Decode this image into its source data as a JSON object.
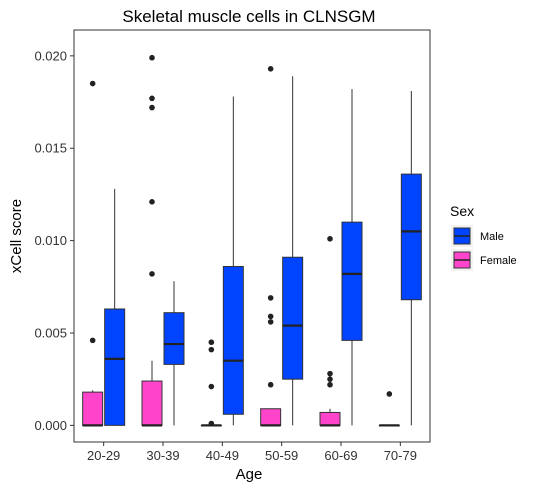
{
  "chart_data": {
    "type": "boxplot",
    "title": "Skeletal muscle cells in CLNSGM",
    "xlabel": "Age",
    "ylabel": "xCell score",
    "ylim": [
      -0.0009,
      0.0214
    ],
    "yticks": [
      "0.000",
      "0.005",
      "0.010",
      "0.015",
      "0.020"
    ],
    "ytick_values": [
      0,
      0.005,
      0.01,
      0.015,
      0.02
    ],
    "categories": [
      "20-29",
      "30-39",
      "40-49",
      "50-59",
      "60-69",
      "70-79"
    ],
    "legend": {
      "title": "Sex",
      "position": "right",
      "entries": [
        {
          "label": "Male",
          "color": "#0044ff"
        },
        {
          "label": "Female",
          "color": "#ff44cc"
        }
      ]
    },
    "grid": false,
    "series": [
      {
        "name": "Female",
        "color": "#ff44cc",
        "boxes": [
          {
            "min": 0,
            "q1": 0,
            "median": 0,
            "q3": 0.0018,
            "max": 0.0019,
            "outliers": [
              0.0185,
              0.0046
            ]
          },
          {
            "min": 0,
            "q1": 0,
            "median": 0,
            "q3": 0.0024,
            "max": 0.0035,
            "outliers": [
              0.0199,
              0.0177,
              0.0172,
              0.0121,
              0.0082
            ]
          },
          {
            "min": 0,
            "q1": 0,
            "median": 0,
            "q3": 0,
            "max": 0,
            "outliers": [
              0.0045,
              0.0041,
              0.0021,
              0.0001
            ]
          },
          {
            "min": 0,
            "q1": 0,
            "median": 0,
            "q3": 0.0009,
            "max": 0.0009,
            "outliers": [
              0.0193,
              0.0069,
              0.0059,
              0.0056,
              0.0022
            ]
          },
          {
            "min": 0,
            "q1": 0,
            "median": 0,
            "q3": 0.0007,
            "max": 0.0009,
            "outliers": [
              0.0101,
              0.0028,
              0.0025,
              0.0022
            ]
          },
          {
            "min": 0,
            "q1": 0,
            "median": 0,
            "q3": 0,
            "max": 0,
            "outliers": [
              0.0017
            ]
          }
        ]
      },
      {
        "name": "Male",
        "color": "#0044ff",
        "boxes": [
          {
            "min": 0,
            "q1": 0,
            "median": 0.0036,
            "q3": 0.0063,
            "max": 0.0128,
            "outliers": []
          },
          {
            "min": 0,
            "q1": 0.0033,
            "median": 0.0044,
            "q3": 0.0061,
            "max": 0.0078,
            "outliers": []
          },
          {
            "min": 0,
            "q1": 0.0006,
            "median": 0.0035,
            "q3": 0.0086,
            "max": 0.0178,
            "outliers": []
          },
          {
            "min": 0,
            "q1": 0.0025,
            "median": 0.0054,
            "q3": 0.0091,
            "max": 0.0189,
            "outliers": []
          },
          {
            "min": 0,
            "q1": 0.0046,
            "median": 0.0082,
            "q3": 0.011,
            "max": 0.0182,
            "outliers": []
          },
          {
            "min": 0,
            "q1": 0.0068,
            "median": 0.0105,
            "q3": 0.0136,
            "max": 0.0181,
            "outliers": []
          }
        ]
      }
    ]
  }
}
